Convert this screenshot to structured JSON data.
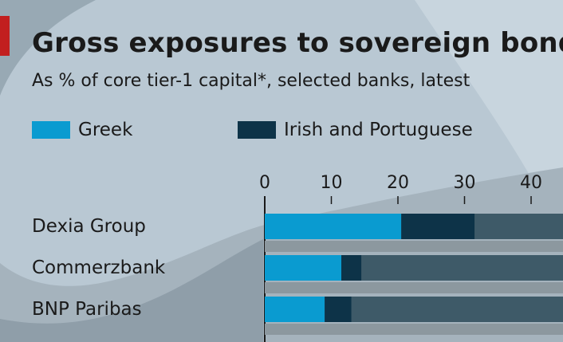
{
  "chart_data": {
    "type": "bar",
    "orientation": "horizontal",
    "stacked": true,
    "title": "Gross exposures to sovereign bonds",
    "subtitle": "As % of core tier-1 capital*, selected banks, latest",
    "categories": [
      "Dexia Group",
      "Commerzbank",
      "BNP Paribas"
    ],
    "series": [
      {
        "name": "Greek",
        "values": [
          20.5,
          11.5,
          9
        ],
        "color": "#0a9bd0"
      },
      {
        "name": "Irish and Portuguese",
        "values": [
          11,
          3,
          4
        ],
        "color": "#0d3348"
      }
    ],
    "x_ticks": [
      "0",
      "10",
      "20",
      "30",
      "40"
    ],
    "xlim": [
      0,
      45
    ],
    "axis_position": "top",
    "legend_position": "top",
    "colors": {
      "background": "#b9c8d3",
      "remainder": "#3e5a68",
      "track": "#8c989f"
    }
  }
}
